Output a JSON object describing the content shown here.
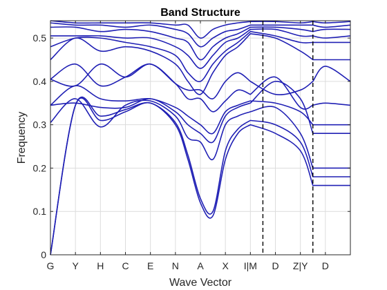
{
  "chart_data": {
    "type": "line",
    "title": "Band Structure",
    "xlabel": "Wave Vector",
    "ylabel": "Frequency",
    "grid": true,
    "ylim": [
      0,
      0.54
    ],
    "yticks": [
      "0",
      "0.1",
      "0.2",
      "0.3",
      "0.4",
      "0.5"
    ],
    "ytick_values": [
      0,
      0.1,
      0.2,
      0.3,
      0.4,
      0.5
    ],
    "xlim": [
      0,
      12
    ],
    "xtick_labels": [
      "G",
      "Y",
      "H",
      "C",
      "E",
      "N",
      "A",
      "X",
      "I|M",
      "D",
      "Z|Y",
      "D"
    ],
    "xtick_values": [
      0,
      1,
      2,
      3,
      4,
      5,
      6,
      7,
      8,
      9,
      10,
      11
    ],
    "vlines": [
      8.5,
      10.5
    ],
    "line_color": "#1f1fb4",
    "x": [
      0,
      1,
      2,
      3,
      4,
      5,
      5.5,
      6,
      6.5,
      7,
      7.5,
      8,
      8,
      9,
      10,
      10.5,
      10.5,
      11,
      12
    ],
    "series": [
      {
        "values": [
          0.0,
          0.345,
          0.31,
          0.33,
          0.35,
          0.3,
          0.22,
          0.12,
          0.09,
          0.22,
          0.28,
          0.3,
          0.3,
          0.28,
          0.24,
          0.16,
          0.16,
          0.16,
          0.16
        ]
      },
      {
        "values": [
          0.0,
          0.345,
          0.32,
          0.335,
          0.35,
          0.305,
          0.23,
          0.13,
          0.1,
          0.24,
          0.29,
          0.31,
          0.31,
          0.3,
          0.26,
          0.18,
          0.18,
          0.18,
          0.18
        ]
      },
      {
        "values": [
          0.305,
          0.36,
          0.295,
          0.345,
          0.355,
          0.32,
          0.27,
          0.26,
          0.22,
          0.3,
          0.32,
          0.33,
          0.33,
          0.34,
          0.28,
          0.2,
          0.2,
          0.2,
          0.2
        ]
      },
      {
        "values": [
          0.345,
          0.35,
          0.34,
          0.34,
          0.36,
          0.33,
          0.3,
          0.28,
          0.26,
          0.32,
          0.34,
          0.35,
          0.35,
          0.4,
          0.36,
          0.28,
          0.28,
          0.28,
          0.28
        ]
      },
      {
        "values": [
          0.345,
          0.39,
          0.36,
          0.355,
          0.36,
          0.34,
          0.32,
          0.3,
          0.28,
          0.33,
          0.345,
          0.355,
          0.355,
          0.35,
          0.33,
          0.3,
          0.3,
          0.3,
          0.3
        ]
      },
      {
        "values": [
          0.405,
          0.39,
          0.44,
          0.41,
          0.44,
          0.395,
          0.36,
          0.36,
          0.33,
          0.355,
          0.38,
          0.37,
          0.37,
          0.41,
          0.34,
          0.345,
          0.345,
          0.35,
          0.345
        ]
      },
      {
        "values": [
          0.405,
          0.44,
          0.39,
          0.41,
          0.44,
          0.395,
          0.38,
          0.38,
          0.36,
          0.4,
          0.42,
          0.4,
          0.4,
          0.37,
          0.38,
          0.4,
          0.4,
          0.435,
          0.4
        ]
      },
      {
        "values": [
          0.45,
          0.5,
          0.47,
          0.48,
          0.47,
          0.44,
          0.4,
          0.37,
          0.42,
          0.46,
          0.48,
          0.51,
          0.51,
          0.5,
          0.47,
          0.45,
          0.45,
          0.45,
          0.45
        ]
      },
      {
        "values": [
          0.48,
          0.5,
          0.5,
          0.49,
          0.48,
          0.46,
          0.42,
          0.4,
          0.44,
          0.47,
          0.49,
          0.515,
          0.515,
          0.505,
          0.49,
          0.49,
          0.49,
          0.49,
          0.49
        ]
      },
      {
        "values": [
          0.505,
          0.505,
          0.505,
          0.5,
          0.5,
          0.48,
          0.46,
          0.43,
          0.46,
          0.49,
          0.5,
          0.52,
          0.52,
          0.52,
          0.505,
          0.505,
          0.505,
          0.5,
          0.505
        ]
      },
      {
        "values": [
          0.525,
          0.525,
          0.515,
          0.52,
          0.515,
          0.5,
          0.49,
          0.45,
          0.48,
          0.5,
          0.51,
          0.525,
          0.525,
          0.525,
          0.52,
          0.515,
          0.515,
          0.52,
          0.52
        ]
      },
      {
        "values": [
          0.535,
          0.53,
          0.53,
          0.525,
          0.53,
          0.52,
          0.51,
          0.48,
          0.5,
          0.515,
          0.52,
          0.53,
          0.53,
          0.53,
          0.53,
          0.53,
          0.53,
          0.525,
          0.53
        ]
      },
      {
        "values": [
          0.54,
          0.535,
          0.535,
          0.535,
          0.535,
          0.53,
          0.53,
          0.5,
          0.52,
          0.53,
          0.535,
          0.538,
          0.538,
          0.538,
          0.535,
          0.538,
          0.538,
          0.535,
          0.538
        ]
      }
    ]
  }
}
